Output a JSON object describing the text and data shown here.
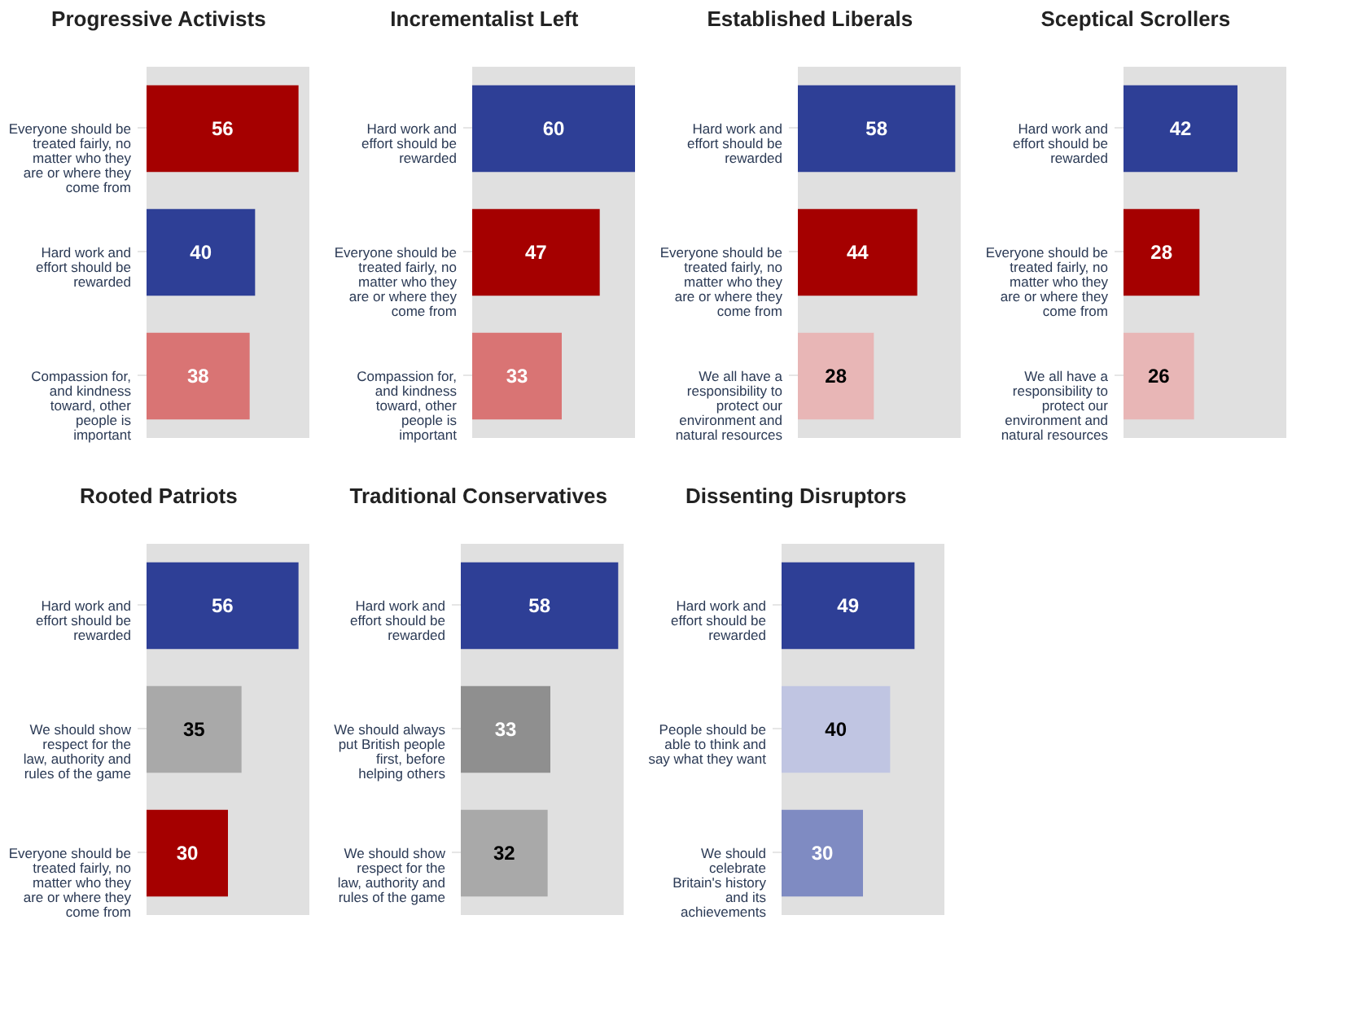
{
  "chart_data": [
    {
      "type": "bar",
      "orientation": "horizontal",
      "title": "Progressive Activists",
      "categories": [
        "Everyone should be treated fairly, no matter who they are or where they come from",
        "Hard work and effort should be rewarded",
        "Compassion for, and kindness toward, other people is important"
      ],
      "values": [
        56,
        40,
        38
      ],
      "colors": [
        "#a50000",
        "#2e3f96",
        "#d97474"
      ],
      "data_labels": true,
      "xlim": [
        0,
        60
      ],
      "tick_labels": "y"
    },
    {
      "type": "bar",
      "orientation": "horizontal",
      "title": "Incrementalist Left",
      "categories": [
        "Hard work and effort should be rewarded",
        "Everyone should be treated fairly, no matter who they are or where they come from",
        "Compassion for, and kindness toward, other people is important"
      ],
      "values": [
        60,
        47,
        33
      ],
      "colors": [
        "#2e3f96",
        "#a50000",
        "#d97474"
      ],
      "data_labels": true,
      "xlim": [
        0,
        60
      ],
      "tick_labels": "y"
    },
    {
      "type": "bar",
      "orientation": "horizontal",
      "title": "Established Liberals",
      "categories": [
        "Hard work and effort should be rewarded",
        "Everyone should be treated fairly, no matter who they are or where they come from",
        "We all have a responsibility to protect our environment and natural resources"
      ],
      "values": [
        58,
        44,
        28
      ],
      "colors": [
        "#2e3f96",
        "#a50000",
        "#e8b6b6"
      ],
      "data_labels": true,
      "xlim": [
        0,
        60
      ],
      "tick_labels": "y"
    },
    {
      "type": "bar",
      "orientation": "horizontal",
      "title": "Sceptical Scrollers",
      "categories": [
        "Hard work and effort should be rewarded",
        "Everyone should be treated fairly, no matter who they are or where they come from",
        "We all have a responsibility to protect our environment and natural resources"
      ],
      "values": [
        42,
        28,
        26
      ],
      "colors": [
        "#2e3f96",
        "#a50000",
        "#e8b6b6"
      ],
      "data_labels": true,
      "xlim": [
        0,
        60
      ],
      "tick_labels": "y"
    },
    {
      "type": "bar",
      "orientation": "horizontal",
      "title": "Rooted Patriots",
      "categories": [
        "Hard work and effort should be rewarded",
        "We should show respect for the law, authority and rules of the game",
        "Everyone should be treated fairly, no matter who they are or where they come from"
      ],
      "values": [
        56,
        35,
        30
      ],
      "colors": [
        "#2e3f96",
        "#a9a9a9",
        "#a50000"
      ],
      "data_labels": true,
      "xlim": [
        0,
        60
      ],
      "tick_labels": "y"
    },
    {
      "type": "bar",
      "orientation": "horizontal",
      "title": "Traditional Conservatives",
      "categories": [
        "Hard work and effort should be rewarded",
        "We should always put British people first, before helping others",
        "We should show respect for the law, authority and rules of the game"
      ],
      "values": [
        58,
        33,
        32
      ],
      "colors": [
        "#2e3f96",
        "#8f8f8f",
        "#a9a9a9"
      ],
      "data_labels": true,
      "xlim": [
        0,
        60
      ],
      "tick_labels": "y"
    },
    {
      "type": "bar",
      "orientation": "horizontal",
      "title": "Dissenting Disruptors",
      "categories": [
        "Hard work and effort should be rewarded",
        "People should be able to think and say what they want",
        "We should celebrate Britain's history and its achievements"
      ],
      "values": [
        49,
        40,
        30
      ],
      "colors": [
        "#2e3f96",
        "#c0c5e2",
        "#7f8bc2"
      ],
      "data_labels": true,
      "xlim": [
        0,
        60
      ],
      "tick_labels": "y"
    }
  ]
}
